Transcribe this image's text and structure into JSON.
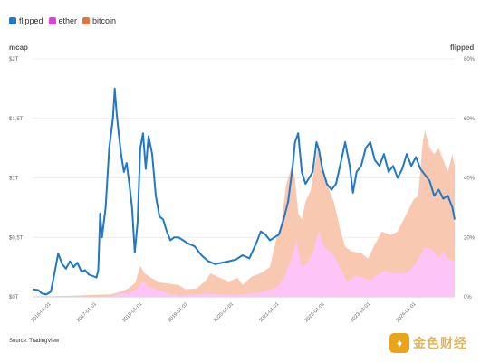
{
  "legend": [
    {
      "label": "flipped",
      "color": "#1f78c8"
    },
    {
      "label": "ether",
      "color": "#e040e0"
    },
    {
      "label": "bitcoin",
      "color": "#e8743c"
    }
  ],
  "source": "Source: TradingView",
  "watermark": {
    "logo": "♦",
    "text": "金色财经"
  },
  "chart_data": {
    "type": "area",
    "xlabel": "",
    "ylabel": "mcap",
    "y2label": "flipped",
    "left_ticks": [
      "$0T",
      "$0.5T",
      "$1T",
      "$1.5T",
      "$2T"
    ],
    "left_tick_values": [
      0,
      0.5,
      1,
      1.5,
      2
    ],
    "right_ticks": [
      "0%",
      "20%",
      "40%",
      "60%",
      "80%"
    ],
    "right_tick_values": [
      0,
      20,
      40,
      60,
      80
    ],
    "x_ticks": [
      "2016-01-01",
      "2017-01-01",
      "2018-01-01",
      "2019-01-01",
      "2020-01-01",
      "2021-01-01",
      "2022-01-01",
      "2023-01-01",
      "2024-01-01"
    ],
    "x_tick_values": [
      2016.0,
      2017.0,
      2018.0,
      2019.0,
      2020.0,
      2021.0,
      2022.0,
      2023.0,
      2024.0
    ],
    "xlim": [
      2015.6,
      2024.85
    ],
    "ylim": [
      0,
      2
    ],
    "y2lim": [
      0,
      80
    ],
    "grid": "horizontal",
    "legend_position": "top-left",
    "series": [
      {
        "name": "bitcoin",
        "axis": "left",
        "style": "area",
        "x": [
          2015.6,
          2016.0,
          2016.5,
          2017.0,
          2017.3,
          2017.5,
          2017.7,
          2017.85,
          2017.96,
          2018.05,
          2018.2,
          2018.4,
          2018.6,
          2018.8,
          2018.95,
          2019.2,
          2019.4,
          2019.5,
          2019.7,
          2019.9,
          2020.1,
          2020.2,
          2020.4,
          2020.6,
          2020.8,
          2020.95,
          2021.05,
          2021.15,
          2021.28,
          2021.35,
          2021.42,
          2021.5,
          2021.58,
          2021.7,
          2021.87,
          2021.95,
          2022.05,
          2022.2,
          2022.35,
          2022.45,
          2022.6,
          2022.8,
          2022.95,
          2023.1,
          2023.25,
          2023.45,
          2023.6,
          2023.8,
          2023.95,
          2024.05,
          2024.15,
          2024.2,
          2024.3,
          2024.4,
          2024.5,
          2024.6,
          2024.7,
          2024.8,
          2024.85
        ],
        "values": [
          0.004,
          0.006,
          0.01,
          0.017,
          0.02,
          0.04,
          0.07,
          0.12,
          0.26,
          0.2,
          0.16,
          0.12,
          0.11,
          0.1,
          0.065,
          0.07,
          0.14,
          0.2,
          0.16,
          0.13,
          0.16,
          0.1,
          0.17,
          0.2,
          0.25,
          0.5,
          0.62,
          0.93,
          1.1,
          1.0,
          0.7,
          0.65,
          0.8,
          0.9,
          1.3,
          1.05,
          0.95,
          0.8,
          0.55,
          0.42,
          0.38,
          0.37,
          0.32,
          0.44,
          0.55,
          0.52,
          0.55,
          0.7,
          0.82,
          0.85,
          1.3,
          1.4,
          1.25,
          1.2,
          1.25,
          1.15,
          1.05,
          1.2,
          1.1
        ]
      },
      {
        "name": "ether",
        "axis": "left",
        "style": "area",
        "x": [
          2015.6,
          2016.5,
          2017.0,
          2017.3,
          2017.5,
          2017.7,
          2017.9,
          2018.02,
          2018.15,
          2018.4,
          2018.6,
          2018.8,
          2019.0,
          2019.4,
          2019.8,
          2020.1,
          2020.4,
          2020.7,
          2020.95,
          2021.1,
          2021.3,
          2021.38,
          2021.5,
          2021.6,
          2021.75,
          2021.87,
          2022.0,
          2022.2,
          2022.4,
          2022.5,
          2022.7,
          2022.9,
          2023.0,
          2023.3,
          2023.5,
          2023.8,
          2024.0,
          2024.2,
          2024.35,
          2024.5,
          2024.6,
          2024.7,
          2024.85
        ],
        "values": [
          0.0,
          0.001,
          0.001,
          0.005,
          0.03,
          0.03,
          0.07,
          0.13,
          0.08,
          0.05,
          0.03,
          0.012,
          0.015,
          0.03,
          0.02,
          0.015,
          0.03,
          0.045,
          0.08,
          0.15,
          0.35,
          0.48,
          0.25,
          0.28,
          0.38,
          0.55,
          0.42,
          0.35,
          0.2,
          0.13,
          0.18,
          0.15,
          0.14,
          0.22,
          0.2,
          0.2,
          0.28,
          0.42,
          0.4,
          0.33,
          0.38,
          0.32,
          0.3
        ]
      },
      {
        "name": "flipped",
        "axis": "right",
        "style": "line",
        "x": [
          2015.6,
          2015.72,
          2015.8,
          2015.9,
          2016.0,
          2016.08,
          2016.16,
          2016.25,
          2016.33,
          2016.42,
          2016.5,
          2016.58,
          2016.67,
          2016.75,
          2016.83,
          2016.92,
          2017.0,
          2017.04,
          2017.08,
          2017.12,
          2017.2,
          2017.28,
          2017.36,
          2017.4,
          2017.44,
          2017.48,
          2017.54,
          2017.6,
          2017.66,
          2017.72,
          2017.78,
          2017.84,
          2017.9,
          2017.96,
          2018.02,
          2018.08,
          2018.14,
          2018.22,
          2018.3,
          2018.38,
          2018.46,
          2018.54,
          2018.62,
          2018.7,
          2018.8,
          2018.9,
          2019.0,
          2019.15,
          2019.3,
          2019.45,
          2019.6,
          2019.75,
          2019.9,
          2020.05,
          2020.2,
          2020.35,
          2020.5,
          2020.6,
          2020.7,
          2020.8,
          2020.9,
          2021.0,
          2021.1,
          2021.2,
          2021.3,
          2021.35,
          2021.42,
          2021.5,
          2021.58,
          2021.66,
          2021.74,
          2021.82,
          2021.88,
          2021.95,
          2022.05,
          2022.15,
          2022.25,
          2022.35,
          2022.45,
          2022.55,
          2022.62,
          2022.7,
          2022.8,
          2022.9,
          2023.0,
          2023.1,
          2023.2,
          2023.3,
          2023.4,
          2023.5,
          2023.6,
          2023.7,
          2023.8,
          2023.9,
          2024.0,
          2024.1,
          2024.2,
          2024.3,
          2024.4,
          2024.5,
          2024.6,
          2024.7,
          2024.8,
          2024.85
        ],
        "values": [
          2.5,
          2.3,
          1.2,
          0.8,
          1.8,
          8.0,
          14.5,
          11.0,
          9.5,
          12.0,
          10.0,
          11.5,
          8.5,
          9.0,
          7.5,
          7.0,
          6.5,
          9.0,
          28.0,
          20.0,
          30.0,
          50.0,
          60.0,
          70.0,
          62.0,
          56.0,
          48.0,
          42.0,
          45.0,
          38.0,
          30.0,
          15.0,
          25.0,
          50.0,
          55.0,
          43.0,
          54.0,
          48.0,
          34.0,
          27.0,
          26.0,
          22.0,
          19.0,
          20.0,
          20.0,
          19.0,
          18.0,
          17.0,
          14.0,
          12.0,
          11.0,
          11.5,
          12.0,
          12.5,
          14.0,
          13.0,
          18.0,
          22.0,
          21.0,
          19.0,
          20.0,
          21.0,
          26.0,
          32.0,
          44.0,
          52.0,
          55.0,
          42.0,
          38.0,
          40.0,
          42.0,
          52.0,
          49.0,
          43.0,
          38.0,
          36.0,
          38.0,
          45.0,
          52.0,
          44.0,
          35.0,
          42.0,
          44.0,
          50.0,
          52.0,
          46.0,
          44.0,
          48.0,
          42.0,
          44.0,
          40.0,
          43.0,
          48.0,
          44.0,
          47.0,
          43.0,
          41.0,
          39.0,
          34.0,
          36.0,
          33.0,
          34.0,
          30.0,
          26.0
        ]
      }
    ]
  }
}
